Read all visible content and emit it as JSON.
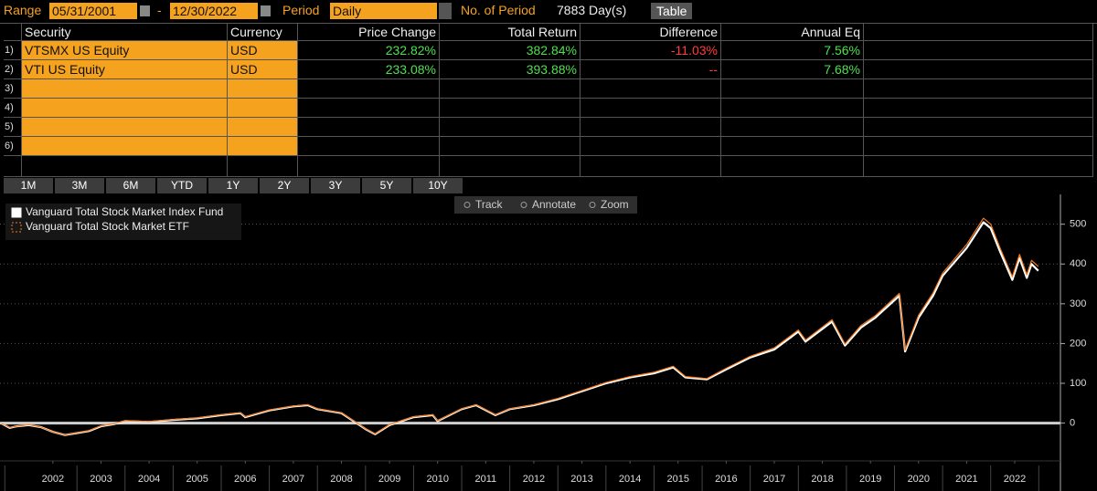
{
  "header": {
    "range_label": "Range",
    "start_date": "05/31/2001",
    "separator": "-",
    "end_date": "12/30/2022",
    "period_label": "Period",
    "period": "Daily",
    "count_label": "No. of Period",
    "count": "7883 Day(s)",
    "table_button": "Table"
  },
  "table": {
    "columns": [
      "Security",
      "Currency",
      "Price Change",
      "Total Return",
      "Difference",
      "Annual Eq"
    ],
    "rows": [
      [
        "1)",
        "VTSMX US Equity",
        "USD",
        "232.82%",
        "382.84%",
        "-11.03%",
        "7.56%"
      ],
      [
        "2)",
        "VTI US Equity",
        "USD",
        "233.08%",
        "393.88%",
        "--",
        "7.68%"
      ],
      [
        "3)"
      ],
      [
        "4)"
      ],
      [
        "5)"
      ],
      [
        "6)"
      ]
    ]
  },
  "period_buttons": [
    "1M",
    "3M",
    "6M",
    "YTD",
    "1Y",
    "2Y",
    "3Y",
    "5Y",
    "10Y"
  ],
  "chart_tools": [
    "Track",
    "Annotate",
    "Zoom"
  ],
  "chart_data": {
    "type": "line",
    "grid": true,
    "legend": "top-left",
    "x": [
      2001.42,
      2001.6,
      2001.75,
      2002.0,
      2002.25,
      2002.5,
      2002.75,
      2003.0,
      2003.25,
      2003.5,
      2003.75,
      2004.0,
      2004.5,
      2005.0,
      2005.5,
      2006.0,
      2006.4,
      2006.5,
      2007.0,
      2007.5,
      2007.8,
      2008.0,
      2008.5,
      2008.75,
      2009.0,
      2009.2,
      2009.5,
      2010.0,
      2010.4,
      2010.5,
      2011.0,
      2011.3,
      2011.7,
      2012.0,
      2012.5,
      2013.0,
      2013.5,
      2014.0,
      2014.5,
      2015.0,
      2015.4,
      2015.65,
      2016.1,
      2016.5,
      2017.0,
      2017.5,
      2018.0,
      2018.15,
      2018.7,
      2018.97,
      2019.3,
      2019.6,
      2020.1,
      2020.22,
      2020.5,
      2020.8,
      2021.0,
      2021.5,
      2021.85,
      2022.0,
      2022.2,
      2022.45,
      2022.6,
      2022.75,
      2022.85,
      2022.99
    ],
    "series": [
      {
        "name": "Vanguard Total Stock Market Index Fund",
        "color": "#ffffff",
        "values": [
          0,
          -12,
          -8,
          -5,
          -10,
          -22,
          -30,
          -25,
          -20,
          -8,
          -3,
          5,
          3,
          8,
          12,
          20,
          25,
          15,
          32,
          42,
          45,
          35,
          25,
          5,
          -15,
          -28,
          -5,
          15,
          20,
          5,
          35,
          45,
          20,
          35,
          45,
          60,
          80,
          100,
          115,
          125,
          140,
          115,
          110,
          135,
          165,
          185,
          230,
          205,
          255,
          195,
          240,
          265,
          320,
          180,
          265,
          320,
          370,
          440,
          505,
          490,
          430,
          360,
          415,
          365,
          400,
          382.84
        ]
      },
      {
        "name": "Vanguard Total Stock Market ETF",
        "color": "#f57c20",
        "values": [
          0,
          -11,
          -8,
          -4,
          -10,
          -22,
          -30,
          -24,
          -19,
          -7,
          -2,
          6,
          4,
          9,
          13,
          21,
          26,
          16,
          33,
          43,
          46,
          36,
          26,
          6,
          -14,
          -27,
          -4,
          16,
          21,
          6,
          36,
          46,
          21,
          36,
          46,
          62,
          82,
          102,
          117,
          128,
          143,
          117,
          112,
          138,
          168,
          189,
          234,
          209,
          260,
          199,
          245,
          270,
          326,
          184,
          271,
          327,
          377,
          449,
          515,
          500,
          439,
          368,
          424,
          373,
          409,
          393.88
        ]
      }
    ],
    "xlim": [
      2001.4,
      2023.45
    ],
    "ylim": [
      -95,
      575
    ],
    "yticks": [
      0,
      100,
      200,
      300,
      400,
      500
    ],
    "xticks": [
      {
        "value": 2002.5,
        "label": "2002"
      },
      {
        "value": 2003.5,
        "label": "2003"
      },
      {
        "value": 2004.5,
        "label": "2004"
      },
      {
        "value": 2005.5,
        "label": "2005"
      },
      {
        "value": 2006.5,
        "label": "2006"
      },
      {
        "value": 2007.5,
        "label": "2007"
      },
      {
        "value": 2008.5,
        "label": "2008"
      },
      {
        "value": 2009.5,
        "label": "2009"
      },
      {
        "value": 2010.5,
        "label": "2010"
      },
      {
        "value": 2011.5,
        "label": "2011"
      },
      {
        "value": 2012.5,
        "label": "2012"
      },
      {
        "value": 2013.5,
        "label": "2013"
      },
      {
        "value": 2014.5,
        "label": "2014"
      },
      {
        "value": 2015.5,
        "label": "2015"
      },
      {
        "value": 2016.5,
        "label": "2016"
      },
      {
        "value": 2017.5,
        "label": "2017"
      },
      {
        "value": 2018.5,
        "label": "2018"
      },
      {
        "value": 2019.5,
        "label": "2019"
      },
      {
        "value": 2020.5,
        "label": "2020"
      },
      {
        "value": 2021.5,
        "label": "2021"
      },
      {
        "value": 2022.5,
        "label": "2022"
      }
    ]
  }
}
